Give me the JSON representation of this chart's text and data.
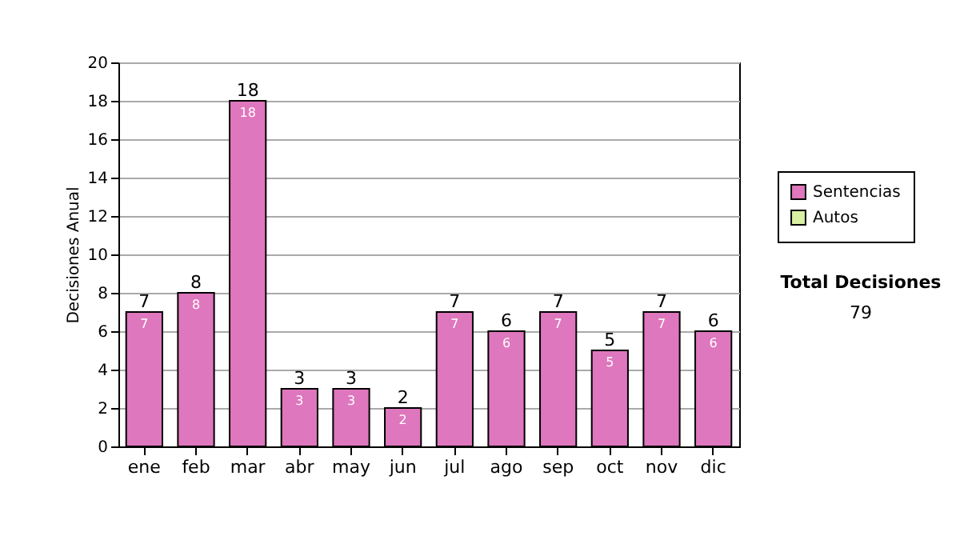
{
  "chart_data": {
    "type": "bar",
    "stacked": true,
    "ylabel": "Decisiones Anual",
    "categories": [
      "ene",
      "feb",
      "mar",
      "abr",
      "may",
      "jun",
      "jul",
      "ago",
      "sep",
      "oct",
      "nov",
      "dic"
    ],
    "series": [
      {
        "name": "Sentencias",
        "color": "#de77bd",
        "values": [
          7,
          8,
          18,
          3,
          3,
          2,
          7,
          6,
          7,
          5,
          7,
          6
        ],
        "value_labels": [
          "7",
          "8",
          "18",
          "3",
          "3",
          "2",
          "7",
          "6",
          "7",
          "5",
          "7",
          "6"
        ]
      },
      {
        "name": "Autos",
        "color": "#d9f0a3",
        "values": [
          0,
          0,
          0,
          0,
          0,
          0,
          0,
          0,
          0,
          0,
          0,
          0
        ]
      }
    ],
    "totals": [
      "7",
      "8",
      "18",
      "3",
      "3",
      "2",
      "7",
      "6",
      "7",
      "5",
      "7",
      "6"
    ],
    "ylim": [
      0,
      20
    ],
    "yticks": [
      0,
      2,
      4,
      6,
      8,
      10,
      12,
      14,
      16,
      18,
      20
    ],
    "grid": "y",
    "legend": "right",
    "annotations": [
      "Total Decisiones",
      "79"
    ]
  }
}
